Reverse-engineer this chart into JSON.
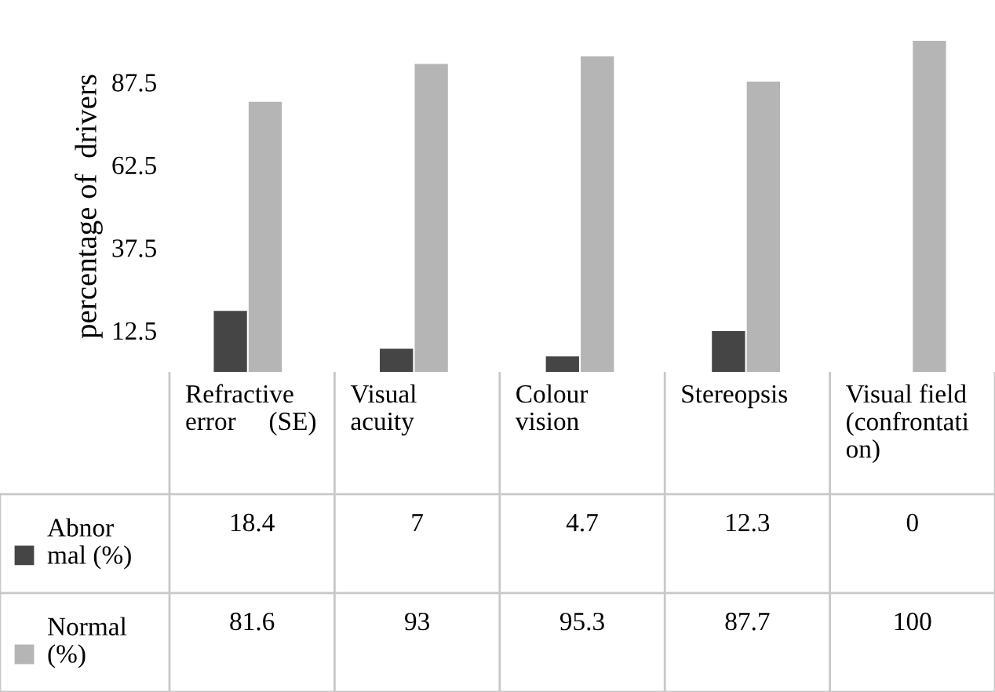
{
  "chart_data": {
    "type": "bar",
    "ylabel": "percentage of  drivers",
    "categories": [
      "Refractive\nerror     (SE)",
      "Visual\nacuity",
      "Colour\nvision",
      "Stereopsis",
      "Visual field\n(confrontati\non)"
    ],
    "series": [
      {
        "name": "Abnor\nmal (%)",
        "color": "#454545",
        "values": [
          18.4,
          7,
          4.7,
          12.3,
          0
        ]
      },
      {
        "name": "Normal\n(%)",
        "color": "#b5b5b5",
        "values": [
          81.6,
          93,
          95.3,
          87.7,
          100
        ]
      }
    ],
    "ylim": [
      0,
      100
    ],
    "yticks": [
      12.5,
      37.5,
      62.5,
      87.5
    ],
    "grid": false,
    "data_labels": true,
    "legend": "bottom left"
  }
}
